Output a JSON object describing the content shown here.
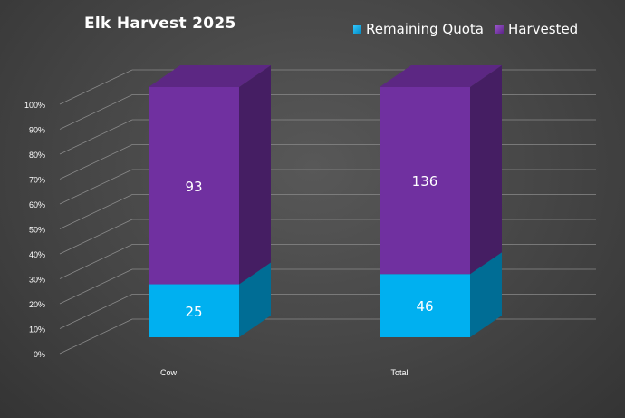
{
  "chart_data": {
    "type": "bar",
    "stacked": "percent",
    "title": "Elk Harvest 2025",
    "categories": [
      "Cow",
      "Total"
    ],
    "series": [
      {
        "name": "Remaining Quota",
        "values": [
          25,
          46
        ],
        "color": "#00B0F0"
      },
      {
        "name": "Harvested",
        "values": [
          93,
          136
        ],
        "color": "#7030A0"
      }
    ],
    "yticks": [
      "0%",
      "10%",
      "20%",
      "30%",
      "40%",
      "50%",
      "60%",
      "70%",
      "80%",
      "90%",
      "100%"
    ],
    "ylim": [
      0,
      1
    ],
    "grid": true,
    "legend": "top-right"
  }
}
